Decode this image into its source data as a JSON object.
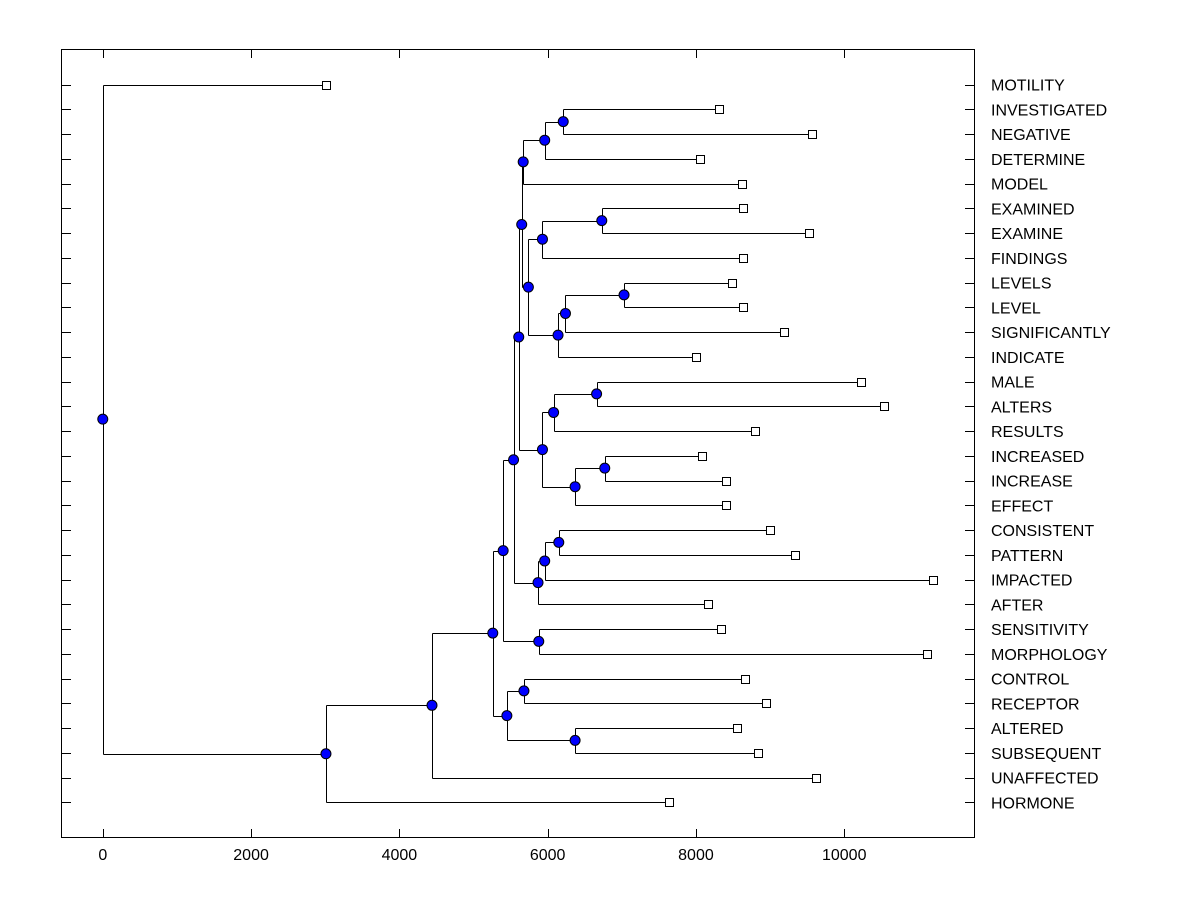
{
  "chart_data": {
    "type": "dendrogram",
    "orientation": "horizontal",
    "xlim": [
      -550,
      11750
    ],
    "x_ticks": [
      0,
      2000,
      4000,
      6000,
      8000,
      10000
    ],
    "x_tick_labels": [
      "0",
      "2000",
      "4000",
      "6000",
      "8000",
      "10000"
    ],
    "node_color": "#0000ff",
    "leaves": [
      {
        "name": "MOTILITY",
        "x": 3010
      },
      {
        "name": "INVESTIGATED",
        "x": 8310
      },
      {
        "name": "NEGATIVE",
        "x": 9560
      },
      {
        "name": "DETERMINE",
        "x": 8060
      },
      {
        "name": "MODEL",
        "x": 8620
      },
      {
        "name": "EXAMINED",
        "x": 8640
      },
      {
        "name": "EXAMINE",
        "x": 9530
      },
      {
        "name": "FINDINGS",
        "x": 8640
      },
      {
        "name": "LEVELS",
        "x": 8480
      },
      {
        "name": "LEVEL",
        "x": 8640
      },
      {
        "name": "SIGNIFICANTLY",
        "x": 9190
      },
      {
        "name": "INDICATE",
        "x": 8000
      },
      {
        "name": "MALE",
        "x": 10220
      },
      {
        "name": "ALTERS",
        "x": 10530
      },
      {
        "name": "RESULTS",
        "x": 8790
      },
      {
        "name": "INCREASED",
        "x": 8080
      },
      {
        "name": "INCREASE",
        "x": 8400
      },
      {
        "name": "EFFECT",
        "x": 8410
      },
      {
        "name": "CONSISTENT",
        "x": 9000
      },
      {
        "name": "PATTERN",
        "x": 9330
      },
      {
        "name": "IMPACTED",
        "x": 11200
      },
      {
        "name": "AFTER",
        "x": 8160
      },
      {
        "name": "SENSITIVITY",
        "x": 8340
      },
      {
        "name": "MORPHOLOGY",
        "x": 11110
      },
      {
        "name": "CONTROL",
        "x": 8660
      },
      {
        "name": "RECEPTOR",
        "x": 8950
      },
      {
        "name": "ALTERED",
        "x": 8550
      },
      {
        "name": "SUBSEQUENT",
        "x": 8840
      },
      {
        "name": "UNAFFECTED",
        "x": 9620
      },
      {
        "name": "HORMONE",
        "x": 7640
      }
    ],
    "merges": [
      {
        "id": "n1",
        "x": 6210,
        "children": [
          1,
          2
        ]
      },
      {
        "id": "n2",
        "x": 5960,
        "children": [
          "n1",
          3
        ]
      },
      {
        "id": "n3",
        "x": 5670,
        "children": [
          "n2",
          4
        ]
      },
      {
        "id": "n4",
        "x": 6730,
        "children": [
          5,
          6
        ]
      },
      {
        "id": "n5",
        "x": 5930,
        "children": [
          "n4",
          7
        ]
      },
      {
        "id": "n6",
        "x": 7030,
        "children": [
          8,
          9
        ]
      },
      {
        "id": "n7",
        "x": 6240,
        "children": [
          "n6",
          10
        ]
      },
      {
        "id": "n8",
        "x": 6140,
        "children": [
          "n7",
          11
        ]
      },
      {
        "id": "n9",
        "x": 5740,
        "children": [
          "n5",
          "n8"
        ]
      },
      {
        "id": "n10",
        "x": 5650,
        "children": [
          "n3",
          "n9"
        ]
      },
      {
        "id": "n11",
        "x": 6660,
        "children": [
          12,
          13
        ]
      },
      {
        "id": "n12",
        "x": 6080,
        "children": [
          "n11",
          14
        ]
      },
      {
        "id": "n13",
        "x": 6770,
        "children": [
          15,
          16
        ]
      },
      {
        "id": "n14",
        "x": 6370,
        "children": [
          "n13",
          17
        ]
      },
      {
        "id": "n15",
        "x": 5930,
        "children": [
          "n12",
          "n14"
        ]
      },
      {
        "id": "n16",
        "x": 5610,
        "children": [
          "n10",
          "n15"
        ]
      },
      {
        "id": "n17",
        "x": 6150,
        "children": [
          18,
          19
        ]
      },
      {
        "id": "n18",
        "x": 5960,
        "children": [
          "n17",
          20
        ]
      },
      {
        "id": "n19",
        "x": 5870,
        "children": [
          "n18",
          21
        ]
      },
      {
        "id": "n20",
        "x": 5540,
        "children": [
          "n16",
          "n19"
        ]
      },
      {
        "id": "n21",
        "x": 5880,
        "children": [
          22,
          23
        ]
      },
      {
        "id": "n22",
        "x": 5400,
        "children": [
          "n20",
          "n21"
        ]
      },
      {
        "id": "n23",
        "x": 5680,
        "children": [
          24,
          25
        ]
      },
      {
        "id": "n24",
        "x": 6370,
        "children": [
          26,
          27
        ]
      },
      {
        "id": "n25",
        "x": 5450,
        "children": [
          "n23",
          "n24"
        ]
      },
      {
        "id": "n26",
        "x": 5260,
        "children": [
          "n22",
          "n25"
        ]
      },
      {
        "id": "n27",
        "x": 4440,
        "children": [
          "n26",
          28
        ]
      },
      {
        "id": "n28",
        "x": 3010,
        "children": [
          "n27",
          29
        ]
      },
      {
        "id": "n29",
        "x": 0,
        "children": [
          0,
          "n28"
        ]
      }
    ]
  }
}
